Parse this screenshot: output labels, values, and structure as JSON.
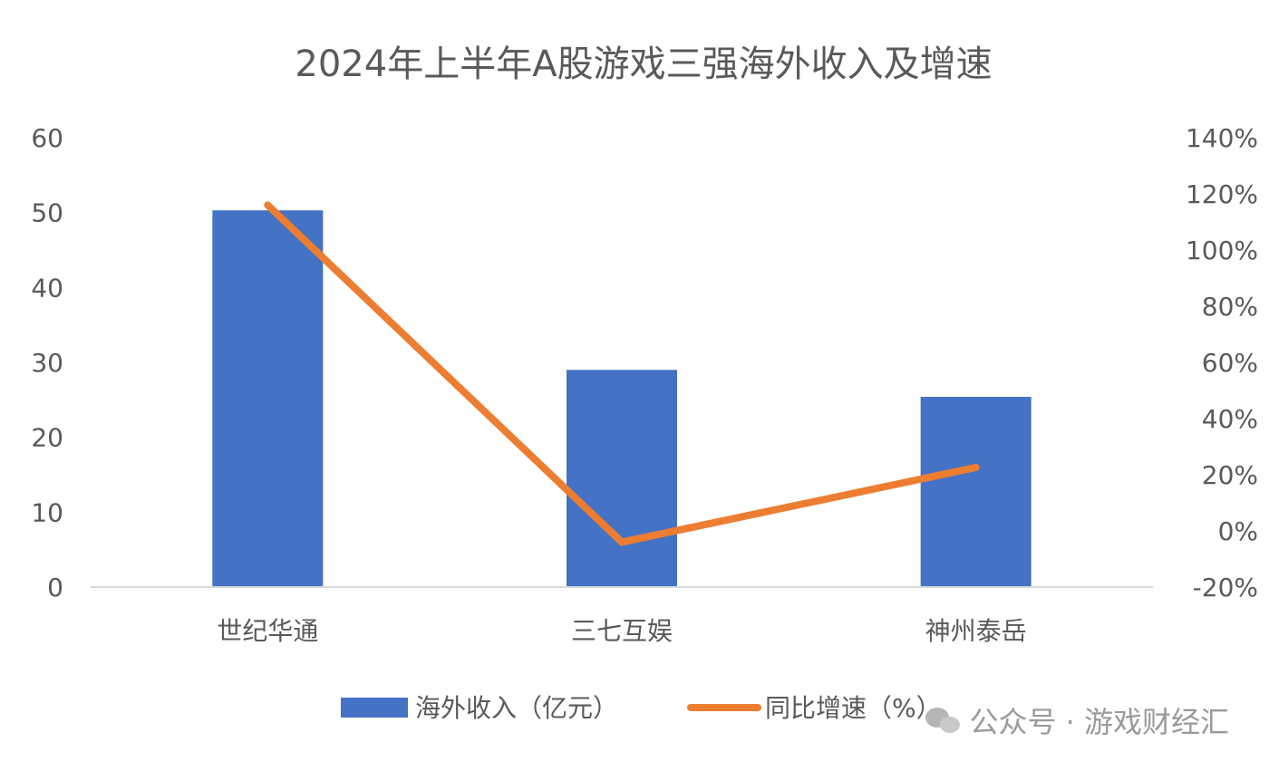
{
  "chart_data": {
    "type": "bar+line",
    "title": "2024年上半年A股游戏三强海外收入及增速",
    "categories": [
      "世纪华通",
      "三七互娱",
      "神州泰岳"
    ],
    "series": [
      {
        "name": "海外收入（亿元）",
        "type": "bar",
        "axis": "left",
        "color": "#4472C4",
        "values": [
          50.3,
          29.0,
          25.4
        ]
      },
      {
        "name": "同比增速（%）",
        "type": "line",
        "axis": "right",
        "color": "#ED7D31",
        "values": [
          116,
          -4,
          22.6
        ]
      }
    ],
    "left_axis": {
      "ylim": [
        0,
        60
      ],
      "ticks": [
        "0",
        "10",
        "20",
        "30",
        "40",
        "50",
        "60"
      ]
    },
    "right_axis": {
      "ylim": [
        -20,
        140
      ],
      "ticks": [
        "-20%",
        "0%",
        "20%",
        "40%",
        "60%",
        "80%",
        "100%",
        "120%",
        "140%"
      ]
    },
    "grid": false,
    "legend_position": "bottom"
  },
  "watermark": "公众号 · 游戏财经汇"
}
